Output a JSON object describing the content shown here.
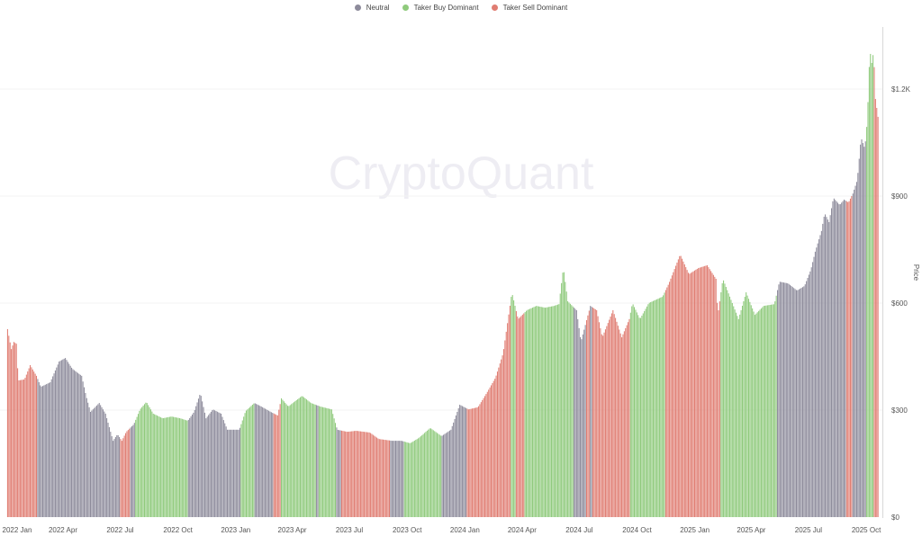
{
  "watermark": "CryptoQuant",
  "legend": [
    {
      "label": "Neutral",
      "key": "neutral"
    },
    {
      "label": "Taker Buy Dominant",
      "key": "buy"
    },
    {
      "label": "Taker Sell Dominant",
      "key": "sell"
    }
  ],
  "colors": {
    "neutral": "#8d8b9b",
    "buy": "#8fca7c",
    "sell": "#e07d72"
  },
  "chart_data": {
    "type": "bar",
    "title": "",
    "xlabel": "",
    "ylabel": "Price",
    "xlim": [
      "2022-01-01",
      "2025-10-20"
    ],
    "ylim": [
      0,
      1375
    ],
    "y_axis_position": "right",
    "grid": true,
    "legend_position": "top",
    "x_ticks": [
      "2022 Jan",
      "2022 Apr",
      "2022 Jul",
      "2022 Oct",
      "2023 Jan",
      "2023 Apr",
      "2023 Jul",
      "2023 Oct",
      "2024 Jan",
      "2024 Apr",
      "2024 Jul",
      "2024 Oct",
      "2025 Jan",
      "2025 Apr",
      "2025 Jul",
      "2025 Oct"
    ],
    "x_tick_dates": [
      "2022-01-01",
      "2022-04-01",
      "2022-07-01",
      "2022-10-01",
      "2023-01-01",
      "2023-04-01",
      "2023-07-01",
      "2023-10-01",
      "2024-01-01",
      "2024-04-01",
      "2024-07-01",
      "2024-10-01",
      "2025-01-01",
      "2025-04-01",
      "2025-07-01",
      "2025-10-01"
    ],
    "y_ticks": [
      {
        "value": 0,
        "label": "$0"
      },
      {
        "value": 300,
        "label": "$300"
      },
      {
        "value": 600,
        "label": "$600"
      },
      {
        "value": 900,
        "label": "$900"
      },
      {
        "value": 1200,
        "label": "$1.2K"
      }
    ],
    "regimes": [
      {
        "start": "2022-01-02",
        "end": "2022-02-18",
        "regime": "sell"
      },
      {
        "start": "2022-02-18",
        "end": "2022-06-30",
        "regime": "neutral"
      },
      {
        "start": "2022-06-30",
        "end": "2022-07-16",
        "regime": "sell"
      },
      {
        "start": "2022-07-16",
        "end": "2022-07-25",
        "regime": "neutral"
      },
      {
        "start": "2022-07-25",
        "end": "2022-10-16",
        "regime": "buy"
      },
      {
        "start": "2022-10-16",
        "end": "2023-01-08",
        "regime": "neutral"
      },
      {
        "start": "2023-01-08",
        "end": "2023-01-30",
        "regime": "buy"
      },
      {
        "start": "2023-01-30",
        "end": "2023-03-01",
        "regime": "neutral"
      },
      {
        "start": "2023-03-01",
        "end": "2023-03-13",
        "regime": "sell"
      },
      {
        "start": "2023-03-13",
        "end": "2023-05-09",
        "regime": "buy"
      },
      {
        "start": "2023-05-09",
        "end": "2023-05-13",
        "regime": "neutral"
      },
      {
        "start": "2023-05-13",
        "end": "2023-06-09",
        "regime": "buy"
      },
      {
        "start": "2023-06-09",
        "end": "2023-06-17",
        "regime": "neutral"
      },
      {
        "start": "2023-06-17",
        "end": "2023-09-03",
        "regime": "sell"
      },
      {
        "start": "2023-09-03",
        "end": "2023-09-25",
        "regime": "neutral"
      },
      {
        "start": "2023-09-25",
        "end": "2023-11-24",
        "regime": "buy"
      },
      {
        "start": "2023-11-24",
        "end": "2023-12-26",
        "regime": "neutral"
      },
      {
        "start": "2023-12-26",
        "end": "2024-01-03",
        "regime": "neutral"
      },
      {
        "start": "2024-01-03",
        "end": "2024-03-14",
        "regime": "sell"
      },
      {
        "start": "2024-03-14",
        "end": "2024-03-21",
        "regime": "buy"
      },
      {
        "start": "2024-03-21",
        "end": "2024-04-05",
        "regime": "sell"
      },
      {
        "start": "2024-04-05",
        "end": "2024-06-22",
        "regime": "buy"
      },
      {
        "start": "2024-06-22",
        "end": "2024-07-12",
        "regime": "neutral"
      },
      {
        "start": "2024-07-12",
        "end": "2024-07-18",
        "regime": "sell"
      },
      {
        "start": "2024-07-18",
        "end": "2024-07-22",
        "regime": "neutral"
      },
      {
        "start": "2024-07-22",
        "end": "2024-09-19",
        "regime": "sell"
      },
      {
        "start": "2024-09-19",
        "end": "2024-11-15",
        "regime": "buy"
      },
      {
        "start": "2024-11-15",
        "end": "2025-02-11",
        "regime": "sell"
      },
      {
        "start": "2025-02-11",
        "end": "2025-05-12",
        "regime": "buy"
      },
      {
        "start": "2025-05-12",
        "end": "2025-08-29",
        "regime": "neutral"
      },
      {
        "start": "2025-08-29",
        "end": "2025-09-09",
        "regime": "sell"
      },
      {
        "start": "2025-09-09",
        "end": "2025-10-01",
        "regime": "neutral"
      },
      {
        "start": "2025-10-01",
        "end": "2025-10-12",
        "regime": "buy"
      },
      {
        "start": "2025-10-12",
        "end": "2025-10-20",
        "regime": "sell"
      }
    ],
    "prices": [
      [
        "2022-01-02",
        527
      ],
      [
        "2022-01-08",
        471
      ],
      [
        "2022-01-12",
        491
      ],
      [
        "2022-01-16",
        486
      ],
      [
        "2022-01-19",
        383
      ],
      [
        "2022-01-29",
        386
      ],
      [
        "2022-02-07",
        426
      ],
      [
        "2022-02-17",
        396
      ],
      [
        "2022-02-24",
        365
      ],
      [
        "2022-03-11",
        378
      ],
      [
        "2022-03-25",
        436
      ],
      [
        "2022-04-04",
        446
      ],
      [
        "2022-04-15",
        416
      ],
      [
        "2022-04-30",
        396
      ],
      [
        "2022-05-07",
        340
      ],
      [
        "2022-05-14",
        295
      ],
      [
        "2022-05-28",
        320
      ],
      [
        "2022-06-07",
        290
      ],
      [
        "2022-06-19",
        214
      ],
      [
        "2022-06-26",
        232
      ],
      [
        "2022-07-03",
        214
      ],
      [
        "2022-07-10",
        239
      ],
      [
        "2022-07-22",
        260
      ],
      [
        "2022-08-01",
        302
      ],
      [
        "2022-08-11",
        323
      ],
      [
        "2022-08-22",
        290
      ],
      [
        "2022-09-06",
        277
      ],
      [
        "2022-09-20",
        282
      ],
      [
        "2022-10-04",
        277
      ],
      [
        "2022-10-16",
        270
      ],
      [
        "2022-10-26",
        295
      ],
      [
        "2022-11-05",
        348
      ],
      [
        "2022-11-14",
        277
      ],
      [
        "2022-11-25",
        302
      ],
      [
        "2022-12-08",
        290
      ],
      [
        "2022-12-18",
        245
      ],
      [
        "2023-01-06",
        245
      ],
      [
        "2023-01-16",
        297
      ],
      [
        "2023-01-30",
        320
      ],
      [
        "2023-02-10",
        310
      ],
      [
        "2023-02-25",
        295
      ],
      [
        "2023-03-08",
        285
      ],
      [
        "2023-03-14",
        333
      ],
      [
        "2023-03-25",
        310
      ],
      [
        "2023-04-16",
        340
      ],
      [
        "2023-04-30",
        320
      ],
      [
        "2023-05-15",
        310
      ],
      [
        "2023-06-02",
        302
      ],
      [
        "2023-06-11",
        245
      ],
      [
        "2023-06-27",
        239
      ],
      [
        "2023-07-11",
        242
      ],
      [
        "2023-08-02",
        237
      ],
      [
        "2023-08-16",
        219
      ],
      [
        "2023-09-06",
        214
      ],
      [
        "2023-09-21",
        214
      ],
      [
        "2023-10-05",
        207
      ],
      [
        "2023-10-19",
        222
      ],
      [
        "2023-11-06",
        250
      ],
      [
        "2023-11-24",
        227
      ],
      [
        "2023-12-09",
        245
      ],
      [
        "2023-12-23",
        315
      ],
      [
        "2024-01-06",
        302
      ],
      [
        "2024-01-21",
        308
      ],
      [
        "2024-02-04",
        348
      ],
      [
        "2024-02-18",
        391
      ],
      [
        "2024-03-01",
        459
      ],
      [
        "2024-03-11",
        580
      ],
      [
        "2024-03-15",
        630
      ],
      [
        "2024-03-25",
        555
      ],
      [
        "2024-04-08",
        580
      ],
      [
        "2024-04-23",
        592
      ],
      [
        "2024-05-07",
        587
      ],
      [
        "2024-05-21",
        592
      ],
      [
        "2024-05-29",
        597
      ],
      [
        "2024-06-05",
        700
      ],
      [
        "2024-06-12",
        605
      ],
      [
        "2024-06-26",
        580
      ],
      [
        "2024-07-03",
        492
      ],
      [
        "2024-07-18",
        592
      ],
      [
        "2024-07-28",
        580
      ],
      [
        "2024-08-06",
        504
      ],
      [
        "2024-08-23",
        580
      ],
      [
        "2024-09-06",
        504
      ],
      [
        "2024-09-18",
        555
      ],
      [
        "2024-09-23",
        600
      ],
      [
        "2024-10-05",
        555
      ],
      [
        "2024-10-19",
        600
      ],
      [
        "2024-11-10",
        618
      ],
      [
        "2024-11-20",
        655
      ],
      [
        "2024-12-08",
        736
      ],
      [
        "2024-12-22",
        681
      ],
      [
        "2025-01-06",
        698
      ],
      [
        "2025-01-20",
        706
      ],
      [
        "2025-02-03",
        668
      ],
      [
        "2025-02-06",
        567
      ],
      [
        "2025-02-14",
        668
      ],
      [
        "2025-02-25",
        618
      ],
      [
        "2025-03-11",
        555
      ],
      [
        "2025-03-23",
        630
      ],
      [
        "2025-04-06",
        567
      ],
      [
        "2025-04-20",
        592
      ],
      [
        "2025-05-07",
        597
      ],
      [
        "2025-05-15",
        660
      ],
      [
        "2025-05-29",
        655
      ],
      [
        "2025-06-12",
        635
      ],
      [
        "2025-06-24",
        648
      ],
      [
        "2025-07-04",
        693
      ],
      [
        "2025-07-11",
        744
      ],
      [
        "2025-07-21",
        802
      ],
      [
        "2025-07-26",
        852
      ],
      [
        "2025-08-02",
        827
      ],
      [
        "2025-08-09",
        895
      ],
      [
        "2025-08-19",
        875
      ],
      [
        "2025-08-26",
        890
      ],
      [
        "2025-09-02",
        882
      ],
      [
        "2025-09-09",
        907
      ],
      [
        "2025-09-16",
        945
      ],
      [
        "2025-09-22",
        1064
      ],
      [
        "2025-09-28",
        1033
      ],
      [
        "2025-10-02",
        1114
      ],
      [
        "2025-10-06",
        1311
      ],
      [
        "2025-10-09",
        1273
      ],
      [
        "2025-10-12",
        1306
      ],
      [
        "2025-10-15",
        1172
      ],
      [
        "2025-10-19",
        1122
      ]
    ]
  }
}
